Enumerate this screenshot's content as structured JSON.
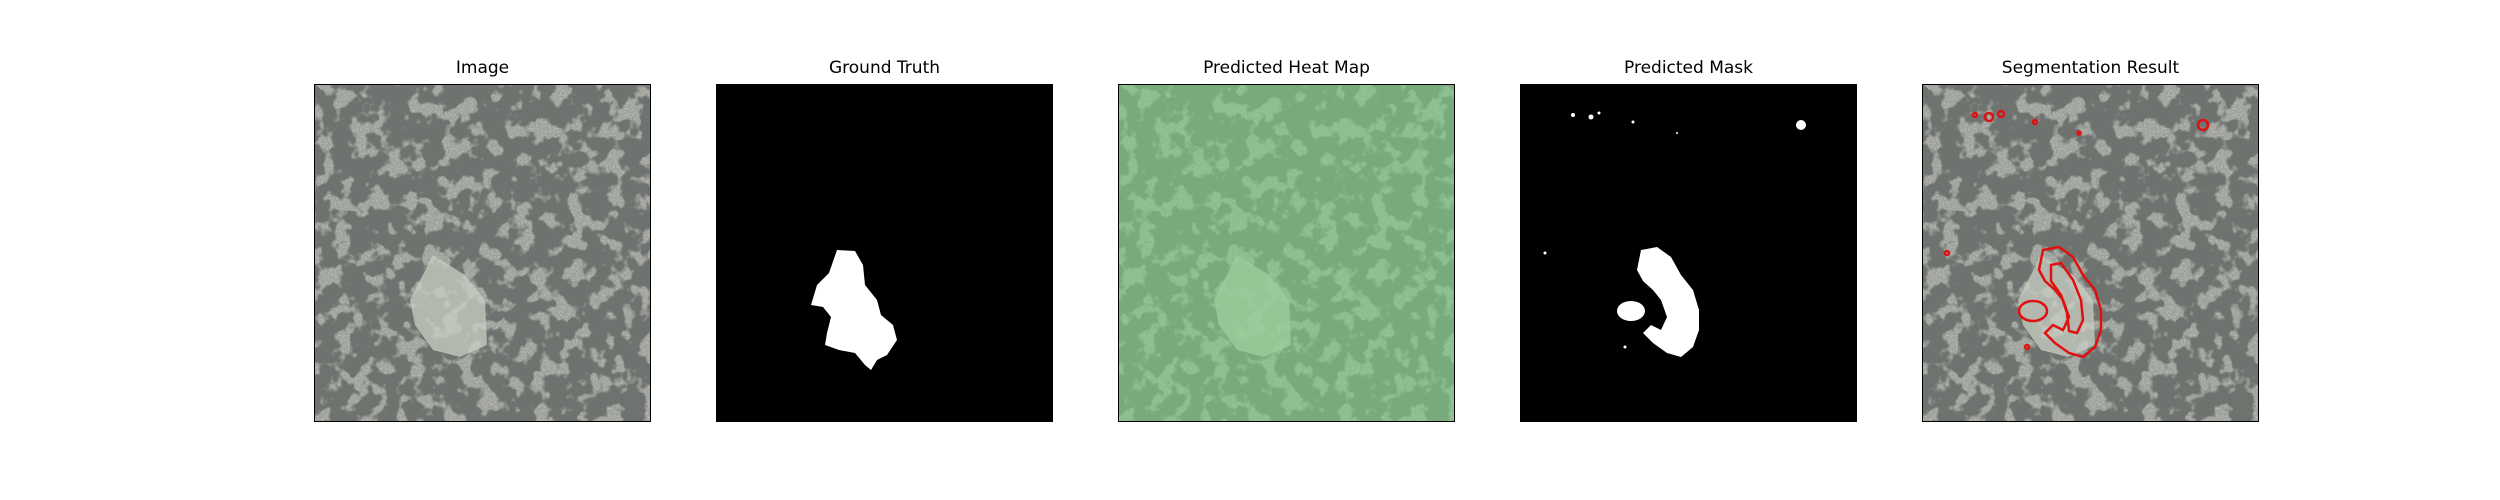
{
  "figure": {
    "panels": [
      {
        "title": "Image"
      },
      {
        "title": "Ground Truth"
      },
      {
        "title": "Predicted Heat Map"
      },
      {
        "title": "Predicted Mask"
      },
      {
        "title": "Segmentation Result"
      }
    ]
  },
  "colors": {
    "background": "#ffffff",
    "texture_base": "#9ea29b",
    "texture_spots": "#2e302d",
    "mask_foreground": "#ffffff",
    "mask_background": "#000000",
    "heatmap_tint": "#7fcf86",
    "contour": "#e01010"
  }
}
